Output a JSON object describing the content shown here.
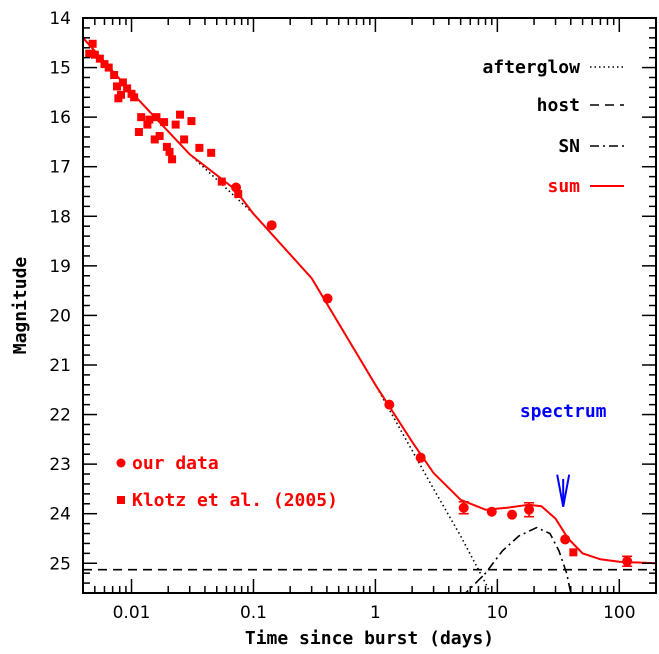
{
  "chart_data": {
    "type": "line",
    "xlabel": "Time since burst (days)",
    "ylabel": "Magnitude",
    "xscale": "log",
    "xlim": [
      0.004,
      200
    ],
    "ylim": [
      25.6,
      14
    ],
    "y_inverted": true,
    "xtick_labels": [
      "0.01",
      "0.1",
      "1",
      "10",
      "100"
    ],
    "xtick_values": [
      0.01,
      0.1,
      1,
      10,
      100
    ],
    "ytick_labels": [
      "14",
      "15",
      "16",
      "17",
      "18",
      "19",
      "20",
      "21",
      "22",
      "23",
      "24",
      "25"
    ],
    "ytick_values": [
      14,
      15,
      16,
      17,
      18,
      19,
      20,
      21,
      22,
      23,
      24,
      25
    ],
    "colors": {
      "data": "#ff0000",
      "sum": "#ff0000",
      "components": "#000000",
      "annotation": "#0000ff"
    },
    "legend_position": "top-right",
    "legend": [
      {
        "label": "afterglow",
        "style": "dotted",
        "color": "#000000"
      },
      {
        "label": "host",
        "style": "dashed",
        "color": "#000000"
      },
      {
        "label": "SN",
        "style": "dash-dot",
        "color": "#000000"
      },
      {
        "label": "sum",
        "style": "solid",
        "color": "#ff0000"
      }
    ],
    "markers_legend_position": "bottom-left",
    "markers_legend": [
      {
        "label": "our data",
        "marker": "circle"
      },
      {
        "label": "Klotz et al. (2005)",
        "marker": "square"
      }
    ],
    "annotation": {
      "label": "spectrum",
      "x": 36,
      "arrow_from_mag": 23.4,
      "arrow_to_mag": 24.0
    },
    "series": [
      {
        "label": "our data",
        "marker": "circle",
        "points": [
          {
            "x": 0.072,
            "y": 17.42
          },
          {
            "x": 0.141,
            "y": 18.18
          },
          {
            "x": 0.405,
            "y": 19.66
          },
          {
            "x": 1.3,
            "y": 21.8
          },
          {
            "x": 2.35,
            "y": 22.87
          },
          {
            "x": 5.3,
            "y": 23.88,
            "err": 0.12
          },
          {
            "x": 9.0,
            "y": 23.96
          },
          {
            "x": 13.2,
            "y": 24.02
          },
          {
            "x": 18.2,
            "y": 23.92,
            "err": 0.14
          },
          {
            "x": 36.0,
            "y": 24.52
          },
          {
            "x": 116.0,
            "y": 24.96,
            "err": 0.1
          }
        ]
      },
      {
        "label": "Klotz et al. (2005)",
        "marker": "square",
        "points": [
          {
            "x": 0.0045,
            "y": 14.72
          },
          {
            "x": 0.0048,
            "y": 14.52
          },
          {
            "x": 0.005,
            "y": 14.74
          },
          {
            "x": 0.0055,
            "y": 14.82
          },
          {
            "x": 0.006,
            "y": 14.93
          },
          {
            "x": 0.0065,
            "y": 15.0
          },
          {
            "x": 0.0072,
            "y": 15.15
          },
          {
            "x": 0.0076,
            "y": 15.38
          },
          {
            "x": 0.0078,
            "y": 15.62
          },
          {
            "x": 0.0082,
            "y": 15.55
          },
          {
            "x": 0.0085,
            "y": 15.3
          },
          {
            "x": 0.0092,
            "y": 15.42
          },
          {
            "x": 0.01,
            "y": 15.53
          },
          {
            "x": 0.0105,
            "y": 15.6
          },
          {
            "x": 0.0115,
            "y": 16.3
          },
          {
            "x": 0.012,
            "y": 16.0
          },
          {
            "x": 0.0135,
            "y": 16.15
          },
          {
            "x": 0.014,
            "y": 16.05
          },
          {
            "x": 0.0155,
            "y": 16.45
          },
          {
            "x": 0.016,
            "y": 16.0
          },
          {
            "x": 0.017,
            "y": 16.38
          },
          {
            "x": 0.0185,
            "y": 16.1
          },
          {
            "x": 0.0195,
            "y": 16.6
          },
          {
            "x": 0.0205,
            "y": 16.7
          },
          {
            "x": 0.0215,
            "y": 16.85
          },
          {
            "x": 0.023,
            "y": 16.15
          },
          {
            "x": 0.025,
            "y": 15.95
          },
          {
            "x": 0.027,
            "y": 16.45
          },
          {
            "x": 0.031,
            "y": 16.08
          },
          {
            "x": 0.036,
            "y": 16.62
          },
          {
            "x": 0.045,
            "y": 16.72
          },
          {
            "x": 0.055,
            "y": 17.3
          },
          {
            "x": 0.075,
            "y": 17.55
          },
          {
            "x": 42.0,
            "y": 24.78
          }
        ]
      }
    ],
    "curves": [
      {
        "label": "afterglow",
        "style": "dotted",
        "color": "#000000",
        "points": [
          [
            0.004,
            14.4
          ],
          [
            0.01,
            15.5
          ],
          [
            0.03,
            16.75
          ],
          [
            0.1,
            17.95
          ],
          [
            0.3,
            19.25
          ],
          [
            1,
            21.4
          ],
          [
            3,
            23.5
          ],
          [
            5,
            24.45
          ],
          [
            8,
            25.4
          ],
          [
            10,
            25.9
          ]
        ]
      },
      {
        "label": "host",
        "style": "dashed",
        "color": "#000000",
        "points": [
          [
            0.004,
            25.13
          ],
          [
            200,
            25.13
          ]
        ]
      },
      {
        "label": "SN",
        "style": "dash-dot",
        "color": "#000000",
        "points": [
          [
            3.5,
            25.7
          ],
          [
            5.5,
            25.6
          ],
          [
            8,
            25.2
          ],
          [
            11,
            24.75
          ],
          [
            15,
            24.45
          ],
          [
            21,
            24.28
          ],
          [
            27,
            24.4
          ],
          [
            32,
            24.75
          ],
          [
            37,
            25.2
          ],
          [
            40,
            25.6
          ]
        ]
      },
      {
        "label": "sum",
        "style": "solid",
        "color": "#ff0000",
        "points": [
          [
            0.004,
            14.4
          ],
          [
            0.01,
            15.5
          ],
          [
            0.03,
            16.75
          ],
          [
            0.07,
            17.45
          ],
          [
            0.1,
            17.95
          ],
          [
            0.3,
            19.25
          ],
          [
            1,
            21.4
          ],
          [
            2,
            22.55
          ],
          [
            3,
            23.18
          ],
          [
            5,
            23.72
          ],
          [
            8,
            23.92
          ],
          [
            12,
            23.88
          ],
          [
            18,
            23.82
          ],
          [
            23,
            23.85
          ],
          [
            30,
            24.1
          ],
          [
            38,
            24.5
          ],
          [
            50,
            24.8
          ],
          [
            70,
            24.92
          ],
          [
            100,
            24.97
          ],
          [
            200,
            25.0
          ]
        ]
      }
    ]
  }
}
